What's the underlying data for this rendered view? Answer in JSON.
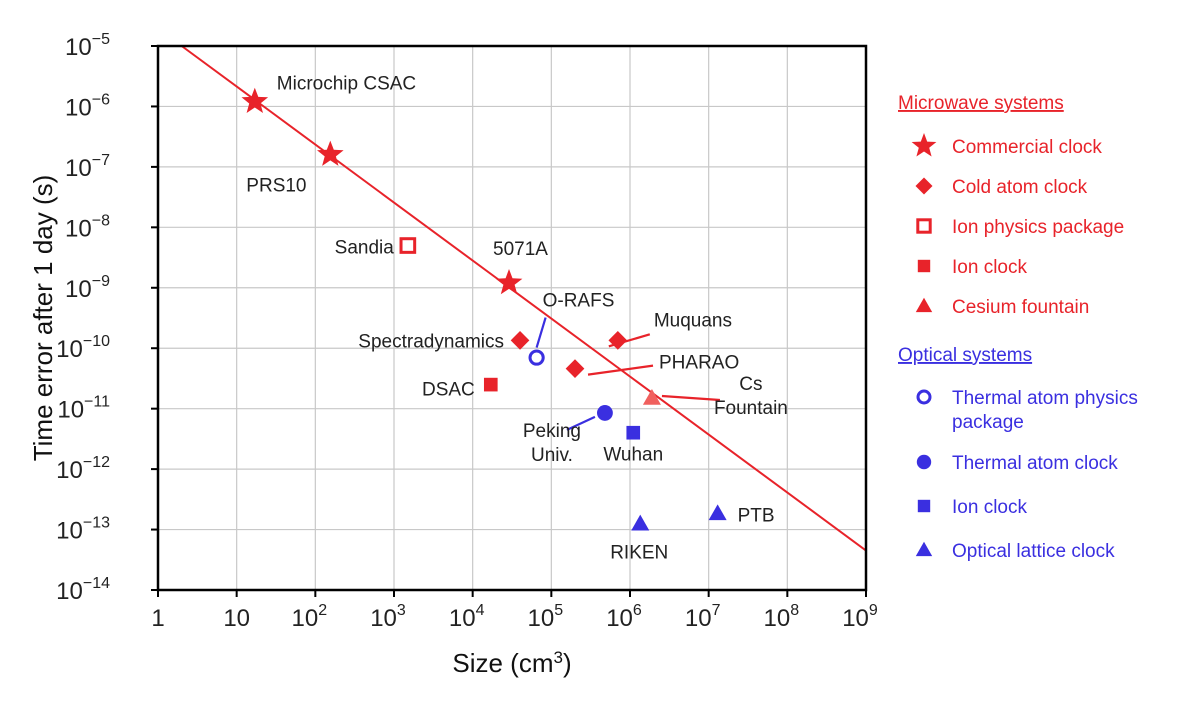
{
  "chart_data": {
    "type": "scatter",
    "title": "",
    "xlabel": "Size (cm",
    "xlabel_sup": "3",
    "xlabel_end": ")",
    "ylabel": "Time error after 1 day (s)",
    "x_scale": "log",
    "y_scale": "log",
    "xlim": [
      1,
      1000000000
    ],
    "ylim": [
      1e-14,
      1e-05
    ],
    "grid": true,
    "legend_position": "right",
    "x_ticks": [
      {
        "base": "1",
        "exp": ""
      },
      {
        "base": "10",
        "exp": ""
      },
      {
        "base": "10",
        "exp": "2"
      },
      {
        "base": "10",
        "exp": "3"
      },
      {
        "base": "10",
        "exp": "4"
      },
      {
        "base": "10",
        "exp": "5"
      },
      {
        "base": "10",
        "exp": "6"
      },
      {
        "base": "10",
        "exp": "7"
      },
      {
        "base": "10",
        "exp": "8"
      },
      {
        "base": "10",
        "exp": "9"
      }
    ],
    "y_ticks": [
      {
        "base": "10",
        "exp": "−14"
      },
      {
        "base": "10",
        "exp": "−13"
      },
      {
        "base": "10",
        "exp": "−12"
      },
      {
        "base": "10",
        "exp": "−11"
      },
      {
        "base": "10",
        "exp": "−10"
      },
      {
        "base": "10",
        "exp": "−9"
      },
      {
        "base": "10",
        "exp": "−8"
      },
      {
        "base": "10",
        "exp": "−7"
      },
      {
        "base": "10",
        "exp": "−6"
      },
      {
        "base": "10",
        "exp": "−5"
      }
    ],
    "trend_line": {
      "x": [
        2,
        1000000000
      ],
      "y": [
        1e-05,
        4.5e-14
      ],
      "color": "#e8232a"
    },
    "colors": {
      "microwave": "#e8232a",
      "optical": "#3a2fe0",
      "cs_fountain": "#f0605e"
    },
    "series": [
      {
        "name": "Commercial clock",
        "group": "microwave",
        "marker": "star",
        "points": [
          {
            "label": "Microchip CSAC",
            "x": 17,
            "y": 1.2e-06
          },
          {
            "label": "PRS10",
            "x": 155,
            "y": 1.6e-07
          },
          {
            "label": "5071A",
            "x": 29000,
            "y": 1.2e-09
          }
        ]
      },
      {
        "name": "Cold atom clock",
        "group": "microwave",
        "marker": "diamond",
        "points": [
          {
            "label": "Spectradynamics",
            "x": 40000,
            "y": 1.35e-10
          },
          {
            "label": "Muquans",
            "x": 700000,
            "y": 1.35e-10
          },
          {
            "label": "PHARAO",
            "x": 200000,
            "y": 4.6e-11
          }
        ]
      },
      {
        "name": "Ion physics package",
        "group": "microwave",
        "marker": "open-square",
        "points": [
          {
            "label": "Sandia",
            "x": 1500,
            "y": 5e-09
          }
        ]
      },
      {
        "name": "Ion clock",
        "group": "microwave",
        "marker": "square",
        "points": [
          {
            "label": "DSAC",
            "x": 17000,
            "y": 2.5e-11
          }
        ]
      },
      {
        "name": "Cesium fountain",
        "group": "microwave",
        "marker": "triangle",
        "points": [
          {
            "label": "Cs\nFountain",
            "x": 1900000,
            "y": 1.5e-11
          }
        ]
      },
      {
        "name": "Thermal atom physics\npackage",
        "group": "optical",
        "marker": "open-circle",
        "points": [
          {
            "label": "O-RAFS",
            "x": 65000,
            "y": 7e-11
          }
        ]
      },
      {
        "name": "Thermal atom clock",
        "group": "optical",
        "marker": "circle",
        "points": [
          {
            "label": "Peking\nUniv.",
            "x": 480000,
            "y": 8.5e-12
          }
        ]
      },
      {
        "name": "Ion clock",
        "group": "optical",
        "marker": "square",
        "points": [
          {
            "label": "Wuhan",
            "x": 1100000,
            "y": 4e-12
          }
        ]
      },
      {
        "name": "Optical lattice clock",
        "group": "optical",
        "marker": "triangle",
        "points": [
          {
            "label": "RIKEN",
            "x": 1350000,
            "y": 1.25e-13
          },
          {
            "label": "PTB",
            "x": 13000000,
            "y": 1.85e-13
          }
        ]
      }
    ],
    "legend": {
      "microwave_heading": "Microwave systems",
      "optical_heading": "Optical systems"
    }
  }
}
